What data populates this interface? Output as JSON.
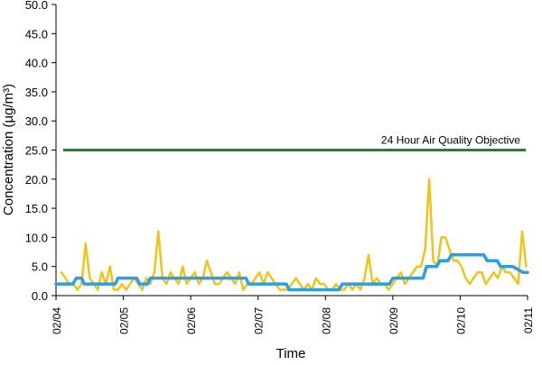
{
  "chart_data": {
    "type": "line",
    "title": "",
    "xlabel": "Time",
    "ylabel": "Concentration (µg/m³)",
    "ylim": [
      0,
      50
    ],
    "yticks": [
      "0.0",
      "5.0",
      "10.0",
      "15.0",
      "20.0",
      "25.0",
      "30.0",
      "35.0",
      "40.0",
      "45.0",
      "50.0"
    ],
    "xlim": [
      "02/04",
      "02/11"
    ],
    "xticks": [
      "02/04",
      "02/05",
      "02/06",
      "02/07",
      "02/08",
      "02/09",
      "02/10",
      "02/11"
    ],
    "grid": false,
    "reference_line": {
      "label": "24 Hour Air Quality Objective",
      "value": 25,
      "color": "#1e8a1e"
    },
    "series": [
      {
        "color": "#f0c419",
        "x": [
          0.08,
          0.14,
          0.2,
          0.26,
          0.32,
          0.38,
          0.44,
          0.5,
          0.56,
          0.62,
          0.68,
          0.74,
          0.8,
          0.86,
          0.92,
          0.98,
          1.04,
          1.1,
          1.16,
          1.22,
          1.28,
          1.34,
          1.4,
          1.46,
          1.52,
          1.58,
          1.64,
          1.7,
          1.76,
          1.82,
          1.88,
          1.94,
          2.0,
          2.06,
          2.12,
          2.18,
          2.24,
          2.3,
          2.36,
          2.42,
          2.48,
          2.54,
          2.6,
          2.66,
          2.72,
          2.78,
          2.84,
          2.9,
          2.96,
          3.02,
          3.08,
          3.14,
          3.2,
          3.26,
          3.32,
          3.38,
          3.44,
          3.5,
          3.56,
          3.62,
          3.68,
          3.74,
          3.8,
          3.86,
          3.92,
          3.98,
          4.04,
          4.1,
          4.16,
          4.22,
          4.28,
          4.34,
          4.4,
          4.46,
          4.52,
          4.58,
          4.64,
          4.7,
          4.76,
          4.82,
          4.88,
          4.94,
          5.0,
          5.06,
          5.12,
          5.18,
          5.24,
          5.3,
          5.36,
          5.42,
          5.48,
          5.54,
          5.6,
          5.66,
          5.72,
          5.78,
          5.84,
          5.9,
          5.96,
          6.02,
          6.08,
          6.14,
          6.2,
          6.26,
          6.32,
          6.38,
          6.44,
          6.5,
          6.56,
          6.62,
          6.68,
          6.74,
          6.8,
          6.86,
          6.92,
          6.98
        ],
        "values": [
          4,
          3,
          2,
          2,
          1,
          2,
          9,
          3,
          2,
          1,
          4,
          2,
          5,
          1,
          1,
          2,
          1,
          2,
          3,
          2,
          1,
          3,
          2,
          4,
          11,
          3,
          2,
          4,
          3,
          2,
          5,
          2,
          3,
          4,
          2,
          3,
          6,
          4,
          2,
          2,
          3,
          4,
          3,
          2,
          4,
          1,
          2,
          2,
          3,
          4,
          2,
          4,
          3,
          2,
          1,
          1,
          1,
          2,
          3,
          2,
          1,
          2,
          1,
          3,
          2,
          2,
          1,
          1,
          2,
          1,
          1,
          2,
          1,
          2,
          1,
          3,
          7,
          2,
          3,
          2,
          2,
          1,
          2,
          3,
          4,
          2,
          3,
          4,
          5,
          5,
          8,
          20,
          6,
          5,
          10,
          10,
          8,
          6,
          6,
          5,
          3,
          2,
          3,
          4,
          4,
          2,
          3,
          4,
          3,
          5,
          4,
          4,
          3,
          2,
          11,
          5
        ]
      },
      {
        "color": "#2b9fe0",
        "x": [
          0.0,
          0.25,
          0.3,
          0.38,
          0.42,
          0.5,
          0.54,
          0.88,
          0.92,
          1.2,
          1.24,
          1.36,
          1.4,
          2.82,
          2.86,
          3.42,
          3.46,
          4.0,
          4.04,
          4.2,
          4.25,
          4.95,
          5.0,
          5.15,
          5.2,
          5.45,
          5.5,
          5.65,
          5.7,
          5.82,
          5.87,
          6.35,
          6.4,
          6.55,
          6.6,
          6.72,
          6.78,
          6.93,
          7.0
        ],
        "values": [
          2,
          2,
          3,
          3,
          2,
          2,
          2,
          2,
          3,
          3,
          2,
          2,
          3,
          3,
          2,
          2,
          1,
          1,
          1,
          1,
          2,
          2,
          3,
          3,
          3,
          3,
          5,
          5,
          6,
          6,
          7,
          7,
          6,
          6,
          5,
          5,
          5,
          4,
          4
        ]
      }
    ]
  }
}
